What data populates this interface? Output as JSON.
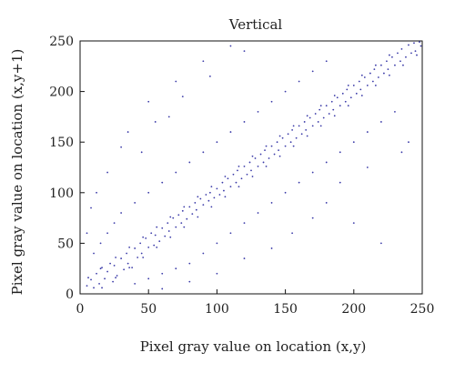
{
  "chart_data": {
    "type": "scatter",
    "title": "Vertical",
    "xlabel": "Pixel gray value on location (x,y)",
    "ylabel": "Pixel gray value on location (x,y+1)",
    "xlim": [
      0,
      250
    ],
    "ylim": [
      0,
      250
    ],
    "xticks": [
      0,
      50,
      100,
      150,
      200,
      250
    ],
    "yticks": [
      0,
      50,
      100,
      150,
      200,
      250
    ],
    "xtick_labels": [
      "0",
      "50",
      "100",
      "150",
      "200",
      "250"
    ],
    "ytick_labels": [
      "0",
      "50",
      "100",
      "150",
      "200",
      "250"
    ],
    "grid": false,
    "marker_color": "#3a3aa8",
    "points_note_free": true,
    "points": [
      [
        5,
        8
      ],
      [
        8,
        14
      ],
      [
        10,
        6
      ],
      [
        12,
        20
      ],
      [
        14,
        10
      ],
      [
        15,
        25
      ],
      [
        18,
        15
      ],
      [
        20,
        22
      ],
      [
        22,
        30
      ],
      [
        24,
        12
      ],
      [
        25,
        28
      ],
      [
        27,
        18
      ],
      [
        30,
        35
      ],
      [
        32,
        24
      ],
      [
        34,
        40
      ],
      [
        35,
        30
      ],
      [
        38,
        26
      ],
      [
        40,
        45
      ],
      [
        42,
        36
      ],
      [
        44,
        50
      ],
      [
        45,
        40
      ],
      [
        48,
        55
      ],
      [
        50,
        46
      ],
      [
        52,
        60
      ],
      [
        54,
        48
      ],
      [
        55,
        58
      ],
      [
        58,
        52
      ],
      [
        60,
        65
      ],
      [
        62,
        57
      ],
      [
        64,
        70
      ],
      [
        65,
        62
      ],
      [
        68,
        75
      ],
      [
        70,
        66
      ],
      [
        72,
        78
      ],
      [
        74,
        70
      ],
      [
        75,
        82
      ],
      [
        78,
        74
      ],
      [
        80,
        86
      ],
      [
        82,
        79
      ],
      [
        84,
        90
      ],
      [
        85,
        83
      ],
      [
        88,
        94
      ],
      [
        90,
        88
      ],
      [
        92,
        98
      ],
      [
        94,
        92
      ],
      [
        95,
        100
      ],
      [
        98,
        95
      ],
      [
        100,
        104
      ],
      [
        102,
        98
      ],
      [
        104,
        110
      ],
      [
        105,
        102
      ],
      [
        108,
        114
      ],
      [
        110,
        106
      ],
      [
        112,
        118
      ],
      [
        114,
        110
      ],
      [
        115,
        122
      ],
      [
        118,
        114
      ],
      [
        120,
        126
      ],
      [
        122,
        118
      ],
      [
        124,
        130
      ],
      [
        125,
        122
      ],
      [
        128,
        134
      ],
      [
        130,
        126
      ],
      [
        132,
        138
      ],
      [
        134,
        130
      ],
      [
        135,
        142
      ],
      [
        138,
        134
      ],
      [
        140,
        146
      ],
      [
        142,
        138
      ],
      [
        144,
        150
      ],
      [
        145,
        142
      ],
      [
        148,
        154
      ],
      [
        150,
        146
      ],
      [
        152,
        158
      ],
      [
        154,
        150
      ],
      [
        155,
        162
      ],
      [
        158,
        154
      ],
      [
        160,
        166
      ],
      [
        162,
        158
      ],
      [
        164,
        170
      ],
      [
        165,
        162
      ],
      [
        168,
        174
      ],
      [
        170,
        166
      ],
      [
        172,
        178
      ],
      [
        174,
        170
      ],
      [
        175,
        182
      ],
      [
        178,
        174
      ],
      [
        180,
        186
      ],
      [
        182,
        178
      ],
      [
        184,
        190
      ],
      [
        185,
        182
      ],
      [
        188,
        194
      ],
      [
        190,
        186
      ],
      [
        192,
        198
      ],
      [
        194,
        190
      ],
      [
        195,
        202
      ],
      [
        198,
        194
      ],
      [
        200,
        206
      ],
      [
        202,
        198
      ],
      [
        204,
        210
      ],
      [
        205,
        202
      ],
      [
        208,
        214
      ],
      [
        210,
        206
      ],
      [
        212,
        218
      ],
      [
        214,
        210
      ],
      [
        215,
        222
      ],
      [
        218,
        214
      ],
      [
        220,
        226
      ],
      [
        222,
        218
      ],
      [
        224,
        230
      ],
      [
        225,
        222
      ],
      [
        228,
        234
      ],
      [
        230,
        226
      ],
      [
        232,
        238
      ],
      [
        234,
        230
      ],
      [
        235,
        242
      ],
      [
        238,
        234
      ],
      [
        240,
        246
      ],
      [
        242,
        238
      ],
      [
        244,
        248
      ],
      [
        245,
        240
      ],
      [
        248,
        249
      ],
      [
        249,
        245
      ],
      [
        246,
        236
      ],
      [
        236,
        226
      ],
      [
        226,
        216
      ],
      [
        216,
        206
      ],
      [
        206,
        196
      ],
      [
        196,
        186
      ],
      [
        186,
        176
      ],
      [
        176,
        166
      ],
      [
        166,
        156
      ],
      [
        156,
        146
      ],
      [
        146,
        136
      ],
      [
        136,
        126
      ],
      [
        126,
        116
      ],
      [
        116,
        106
      ],
      [
        106,
        96
      ],
      [
        96,
        86
      ],
      [
        86,
        76
      ],
      [
        76,
        66
      ],
      [
        66,
        56
      ],
      [
        56,
        46
      ],
      [
        46,
        36
      ],
      [
        36,
        26
      ],
      [
        26,
        16
      ],
      [
        16,
        6
      ],
      [
        6,
        16
      ],
      [
        16,
        26
      ],
      [
        26,
        36
      ],
      [
        36,
        46
      ],
      [
        46,
        56
      ],
      [
        56,
        66
      ],
      [
        66,
        76
      ],
      [
        76,
        86
      ],
      [
        86,
        96
      ],
      [
        96,
        106
      ],
      [
        106,
        116
      ],
      [
        116,
        126
      ],
      [
        126,
        136
      ],
      [
        136,
        146
      ],
      [
        146,
        156
      ],
      [
        156,
        166
      ],
      [
        166,
        176
      ],
      [
        176,
        186
      ],
      [
        186,
        196
      ],
      [
        196,
        206
      ],
      [
        206,
        216
      ],
      [
        216,
        226
      ],
      [
        226,
        236
      ],
      [
        10,
        40
      ],
      [
        15,
        50
      ],
      [
        20,
        60
      ],
      [
        25,
        70
      ],
      [
        30,
        80
      ],
      [
        40,
        90
      ],
      [
        50,
        100
      ],
      [
        60,
        110
      ],
      [
        70,
        120
      ],
      [
        80,
        130
      ],
      [
        90,
        140
      ],
      [
        100,
        150
      ],
      [
        110,
        160
      ],
      [
        120,
        170
      ],
      [
        130,
        180
      ],
      [
        140,
        190
      ],
      [
        150,
        200
      ],
      [
        160,
        210
      ],
      [
        170,
        220
      ],
      [
        180,
        230
      ],
      [
        40,
        10
      ],
      [
        50,
        15
      ],
      [
        60,
        20
      ],
      [
        70,
        25
      ],
      [
        80,
        30
      ],
      [
        90,
        40
      ],
      [
        100,
        50
      ],
      [
        110,
        60
      ],
      [
        120,
        70
      ],
      [
        130,
        80
      ],
      [
        140,
        90
      ],
      [
        150,
        100
      ],
      [
        160,
        110
      ],
      [
        170,
        120
      ],
      [
        180,
        130
      ],
      [
        190,
        140
      ],
      [
        200,
        150
      ],
      [
        210,
        160
      ],
      [
        220,
        170
      ],
      [
        230,
        180
      ],
      [
        12,
        100
      ],
      [
        30,
        145
      ],
      [
        55,
        170
      ],
      [
        75,
        195
      ],
      [
        95,
        215
      ],
      [
        120,
        240
      ],
      [
        180,
        90
      ],
      [
        200,
        70
      ],
      [
        220,
        50
      ],
      [
        235,
        140
      ],
      [
        60,
        5
      ],
      [
        80,
        12
      ],
      [
        100,
        20
      ],
      [
        120,
        35
      ],
      [
        140,
        45
      ],
      [
        155,
        60
      ],
      [
        170,
        75
      ],
      [
        190,
        110
      ],
      [
        210,
        125
      ],
      [
        240,
        150
      ],
      [
        20,
        120
      ],
      [
        35,
        160
      ],
      [
        50,
        190
      ],
      [
        70,
        210
      ],
      [
        90,
        230
      ],
      [
        110,
        245
      ],
      [
        5,
        60
      ],
      [
        8,
        85
      ],
      [
        45,
        140
      ],
      [
        65,
        175
      ]
    ]
  }
}
